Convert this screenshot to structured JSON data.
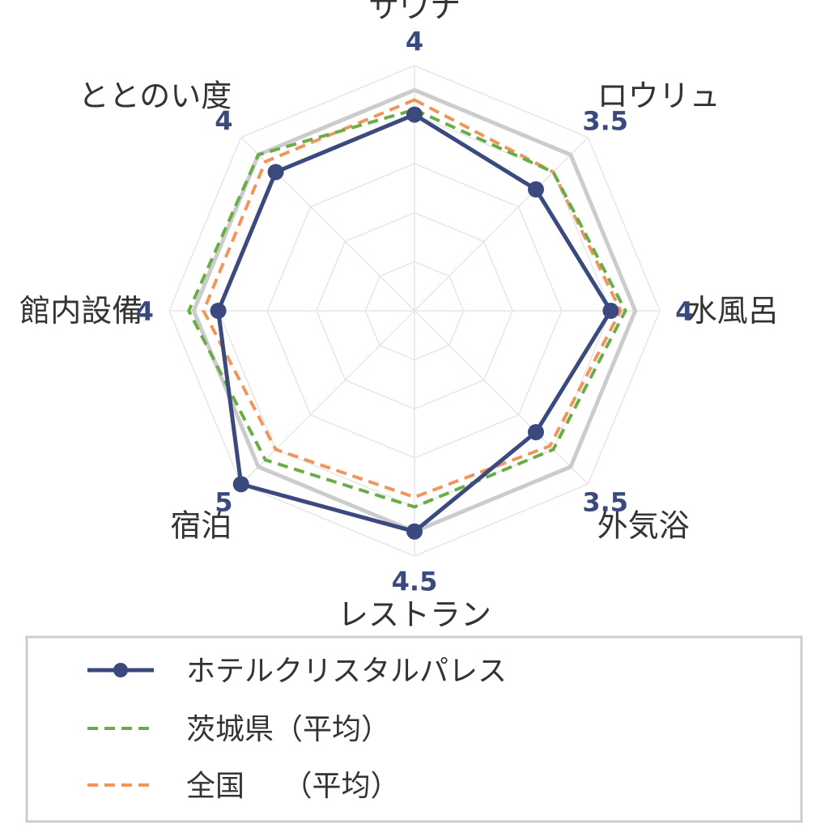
{
  "chart_data": {
    "type": "radar",
    "axes": [
      "サウナ",
      "ロウリュ",
      "水風呂",
      "外気浴",
      "レストラン",
      "宿泊",
      "館内設備",
      "ととのい度"
    ],
    "range": [
      0,
      5
    ],
    "grid_levels": [
      1,
      2,
      3,
      4,
      5
    ],
    "series": [
      {
        "name": "ホテルクリスタルパレス",
        "values": [
          4,
          3.5,
          4,
          3.5,
          4.5,
          5,
          4,
          4
        ],
        "value_labels": [
          "4",
          "3.5",
          "4",
          "3.5",
          "4.5",
          "5",
          "4",
          "4"
        ],
        "color": "#3b4a7e",
        "style": "solid-markers"
      },
      {
        "name": "茨城県（平均）",
        "values": [
          4.1,
          4.0,
          4.3,
          4.0,
          4.0,
          4.3,
          4.6,
          4.5
        ],
        "color": "#6aad46",
        "style": "dashed"
      },
      {
        "name": "全国　 （平均）",
        "values": [
          4.3,
          4.0,
          4.2,
          3.9,
          3.8,
          4.0,
          4.3,
          4.3
        ],
        "color": "#f0965a",
        "style": "dashed"
      }
    ],
    "reference_outline_value": 4.5,
    "reference_outline_color": "#cccccc",
    "grid_color": "#e6e6e6",
    "legend_position": "bottom"
  }
}
